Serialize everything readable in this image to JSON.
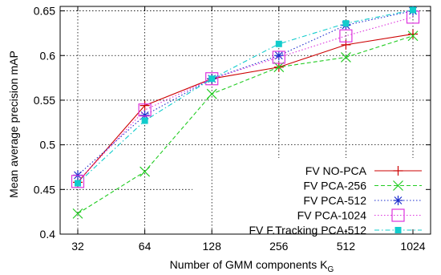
{
  "chart_data": {
    "type": "line",
    "xscale": "log2",
    "x": [
      32,
      64,
      128,
      256,
      512,
      1024
    ],
    "x_tick_labels": [
      "32",
      "64",
      "128",
      "256",
      "512",
      "1024"
    ],
    "y_tick_labels": [
      "0.4",
      "0.45",
      "0.5",
      "0.55",
      "0.6",
      "0.65"
    ],
    "y_ticks": [
      0.4,
      0.45,
      0.5,
      0.55,
      0.6,
      0.65
    ],
    "ylim": [
      0.4,
      0.655
    ],
    "xlabel": "Number of GMM components K",
    "xlabel_subscript": "G",
    "ylabel": "Mean average precision mAP",
    "grid": true,
    "legend_position": "bottom-right",
    "series": [
      {
        "name": "FV NO-PCA",
        "values": [
          0.458,
          0.544,
          0.574,
          0.587,
          0.612,
          0.624
        ],
        "color": "#cc0000",
        "marker": "plus",
        "dash": "solid"
      },
      {
        "name": "FV PCA-256",
        "values": [
          0.423,
          0.47,
          0.557,
          0.587,
          0.598,
          0.622
        ],
        "color": "#22cc22",
        "marker": "cross",
        "dash": "dashed"
      },
      {
        "name": "FV PCA-512",
        "values": [
          0.466,
          0.533,
          0.574,
          0.6,
          0.634,
          0.65
        ],
        "color": "#1a2ccc",
        "marker": "star",
        "dash": "dotted"
      },
      {
        "name": "FV PCA-1024",
        "values": [
          0.459,
          0.539,
          0.574,
          0.598,
          0.622,
          0.643
        ],
        "color": "#dd33dd",
        "marker": "square-open",
        "dash": "dotted"
      },
      {
        "name": "FV F.Tracking PCA-512",
        "values": [
          0.457,
          0.527,
          0.574,
          0.613,
          0.636,
          0.651
        ],
        "color": "#11cccc",
        "marker": "square-filled",
        "dash": "dashdot"
      }
    ]
  }
}
